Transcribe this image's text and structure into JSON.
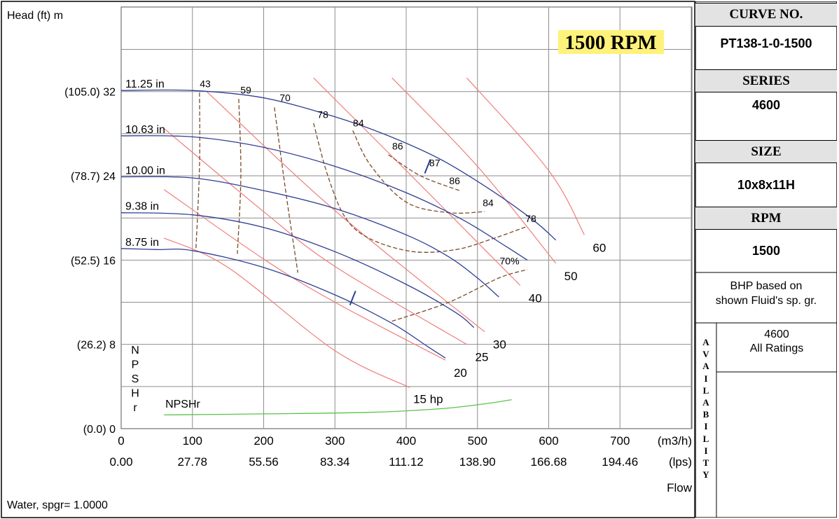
{
  "chart_data": {
    "type": "line",
    "rpm_badge": "1500 RPM",
    "ylabel": "Head (ft)  m",
    "y_ticks": [
      {
        "value": 0,
        "label": "(0.0) 0"
      },
      {
        "value": 8,
        "label": "(26.2) 8"
      },
      {
        "value": 16,
        "label": "(52.5) 16"
      },
      {
        "value": 24,
        "label": "(78.7) 24"
      },
      {
        "value": 32,
        "label": "(105.0) 32"
      }
    ],
    "ylim": [
      0,
      40
    ],
    "xlim": [
      0,
      800
    ],
    "x_ticks_m3h": [
      0,
      100,
      200,
      300,
      400,
      500,
      600,
      700
    ],
    "x_ticks_lps": [
      "0.00",
      "27.78",
      "55.56",
      "83.34",
      "111.12",
      "138.90",
      "166.68",
      "194.46"
    ],
    "x_unit_m3h": "(m3/h)",
    "x_unit_lps": "(lps)",
    "xlabel": "Flow",
    "npsh_axis_label": [
      "N",
      "P",
      "S",
      "H",
      "r"
    ],
    "fluid_note": "Water, spgr= 1.0000",
    "impeller_curves": [
      {
        "label": "11.25 in",
        "points": [
          [
            0,
            32.1
          ],
          [
            100,
            32.1
          ],
          [
            200,
            31.4
          ],
          [
            300,
            29.6
          ],
          [
            375,
            27.8
          ],
          [
            450,
            25.5
          ],
          [
            520,
            22.6
          ],
          [
            580,
            19.7
          ],
          [
            610,
            17.9
          ]
        ]
      },
      {
        "label": "10.63 in",
        "points": [
          [
            0,
            27.8
          ],
          [
            100,
            27.7
          ],
          [
            200,
            26.7
          ],
          [
            300,
            24.9
          ],
          [
            400,
            22.4
          ],
          [
            480,
            19.8
          ],
          [
            540,
            17.3
          ],
          [
            570,
            16.0
          ]
        ]
      },
      {
        "label": "10.00 in",
        "points": [
          [
            0,
            23.9
          ],
          [
            100,
            23.8
          ],
          [
            200,
            22.6
          ],
          [
            300,
            20.9
          ],
          [
            400,
            18.4
          ],
          [
            460,
            16.3
          ],
          [
            500,
            14.3
          ],
          [
            530,
            12.5
          ]
        ]
      },
      {
        "label": "9.38 in",
        "points": [
          [
            0,
            20.5
          ],
          [
            100,
            20.3
          ],
          [
            200,
            19.1
          ],
          [
            300,
            16.8
          ],
          [
            400,
            13.7
          ],
          [
            470,
            11.0
          ],
          [
            495,
            9.6
          ]
        ]
      },
      {
        "label": "8.75 in",
        "points": [
          [
            0,
            17.1
          ],
          [
            50,
            17.0
          ],
          [
            100,
            16.9
          ],
          [
            200,
            15.3
          ],
          [
            300,
            12.7
          ],
          [
            380,
            10.0
          ],
          [
            430,
            7.8
          ],
          [
            455,
            6.7
          ]
        ]
      }
    ],
    "power_curves": [
      {
        "label": "15 hp",
        "points": [
          [
            60,
            18.1
          ],
          [
            150,
            15.3
          ],
          [
            300,
            7.4
          ],
          [
            405,
            3.9
          ]
        ]
      },
      {
        "label": "20",
        "points": [
          [
            60,
            22.7
          ],
          [
            200,
            16.1
          ],
          [
            300,
            12.0
          ],
          [
            455,
            6.5
          ]
        ]
      },
      {
        "label": "25",
        "points": [
          [
            60,
            28.5
          ],
          [
            200,
            20.6
          ],
          [
            300,
            15.4
          ],
          [
            485,
            8.0
          ]
        ]
      },
      {
        "label": "30",
        "points": [
          [
            120,
            32.0
          ],
          [
            300,
            20.7
          ],
          [
            510,
            9.2
          ]
        ]
      },
      {
        "label": "40",
        "points": [
          [
            270,
            33.3
          ],
          [
            400,
            24.5
          ],
          [
            560,
            13.6
          ]
        ]
      },
      {
        "label": "50",
        "points": [
          [
            380,
            33.3
          ],
          [
            500,
            24.9
          ],
          [
            610,
            15.7
          ]
        ]
      },
      {
        "label": "60",
        "points": [
          [
            485,
            33.3
          ],
          [
            600,
            24.5
          ],
          [
            650,
            18.4
          ]
        ]
      }
    ],
    "efficiency_curves": [
      {
        "label": "43",
        "points": [
          [
            110,
            31.9
          ],
          [
            110,
            25
          ],
          [
            105,
            17.1
          ]
        ]
      },
      {
        "label": "59",
        "points": [
          [
            165,
            31.3
          ],
          [
            168,
            24
          ],
          [
            163,
            16.6
          ]
        ]
      },
      {
        "label": "70",
        "points": [
          [
            215,
            30.5
          ],
          [
            232,
            22
          ],
          [
            248,
            14.8
          ]
        ]
      },
      {
        "label": "78",
        "points": [
          [
            270,
            29.0
          ],
          [
            290,
            24
          ],
          [
            315,
            20
          ],
          [
            350,
            18
          ],
          [
            410,
            16.8
          ],
          [
            470,
            17.0
          ],
          [
            520,
            18.0
          ],
          [
            570,
            19.2
          ]
        ]
      },
      {
        "label": "84",
        "points": [
          [
            325,
            28.3
          ],
          [
            350,
            25
          ],
          [
            400,
            21.5
          ],
          [
            460,
            20.5
          ],
          [
            510,
            20.6
          ]
        ]
      },
      {
        "label": "86",
        "points": [
          [
            375,
            26.0
          ],
          [
            420,
            24
          ],
          [
            475,
            22.6
          ]
        ]
      },
      {
        "label": "70%",
        "points": [
          [
            380,
            10.2
          ],
          [
            460,
            12
          ],
          [
            530,
            14.3
          ],
          [
            570,
            15.1
          ]
        ]
      }
    ],
    "efficiency_labels": [
      {
        "text": "43",
        "x": 118,
        "y": 32.4
      },
      {
        "text": "59",
        "x": 175,
        "y": 31.8
      },
      {
        "text": "70",
        "x": 230,
        "y": 31.1
      },
      {
        "text": "78",
        "x": 283,
        "y": 29.5
      },
      {
        "text": "84",
        "x": 333,
        "y": 28.7
      },
      {
        "text": "86",
        "x": 388,
        "y": 26.5
      },
      {
        "text": "87",
        "x": 440,
        "y": 24.9
      },
      {
        "text": "86",
        "x": 468,
        "y": 23.2
      },
      {
        "text": "84",
        "x": 515,
        "y": 21.1
      },
      {
        "text": "78",
        "x": 575,
        "y": 19.6
      },
      {
        "text": "70%",
        "x": 545,
        "y": 15.6
      }
    ],
    "npshr_curve": {
      "label": "NPSHr",
      "points": [
        [
          60,
          1.3
        ],
        [
          200,
          1.4
        ],
        [
          350,
          1.55
        ],
        [
          450,
          1.9
        ],
        [
          515,
          2.4
        ],
        [
          548,
          2.75
        ]
      ]
    },
    "npshr_label_pos": [
      62,
      2.0
    ],
    "bep_ticks": [
      [
        430,
        24.9
      ],
      [
        325,
        12.4
      ]
    ],
    "colors": {
      "impeller": "#2e3f94",
      "power": "#ef7d7d",
      "efficiency": "#7a4a28",
      "npsh": "#5ac44a",
      "grid": "#8e8e8e",
      "badge": "#fff27a"
    }
  },
  "side_panel": {
    "curve_no_label": "CURVE NO.",
    "curve_no": "PT138-1-0-1500",
    "series_label": "SERIES",
    "series": "4600",
    "size_label": "SIZE",
    "size": "10x8x11H",
    "rpm_label": "RPM",
    "rpm": "1500",
    "bhp_note_line1": "BHP based on",
    "bhp_note_line2": "shown Fluid's sp. gr.",
    "availability_letters": [
      "A",
      "V",
      "A",
      "I",
      "L",
      "A",
      "B",
      "I",
      "L",
      "I",
      "T",
      "Y"
    ],
    "availability_value_line1": "4600",
    "availability_value_line2": "All Ratings"
  }
}
